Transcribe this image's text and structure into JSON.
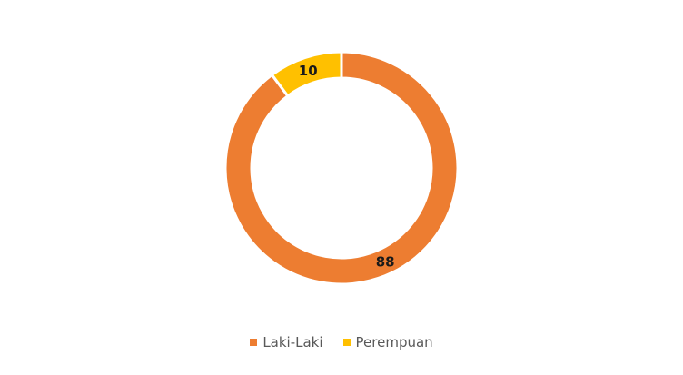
{
  "chart_data": {
    "type": "pie",
    "variant": "doughnut",
    "title": "",
    "categories": [
      "Laki-Laki",
      "Perempuan"
    ],
    "values": [
      88,
      10
    ],
    "colors": [
      "#ED7D31",
      "#FFC000"
    ],
    "data_labels": [
      "88",
      "10"
    ],
    "legend_position": "bottom"
  },
  "legend": {
    "items": [
      {
        "label": "Laki-Laki",
        "color": "#ED7D31"
      },
      {
        "label": "Perempuan",
        "color": "#FFC000"
      }
    ]
  }
}
